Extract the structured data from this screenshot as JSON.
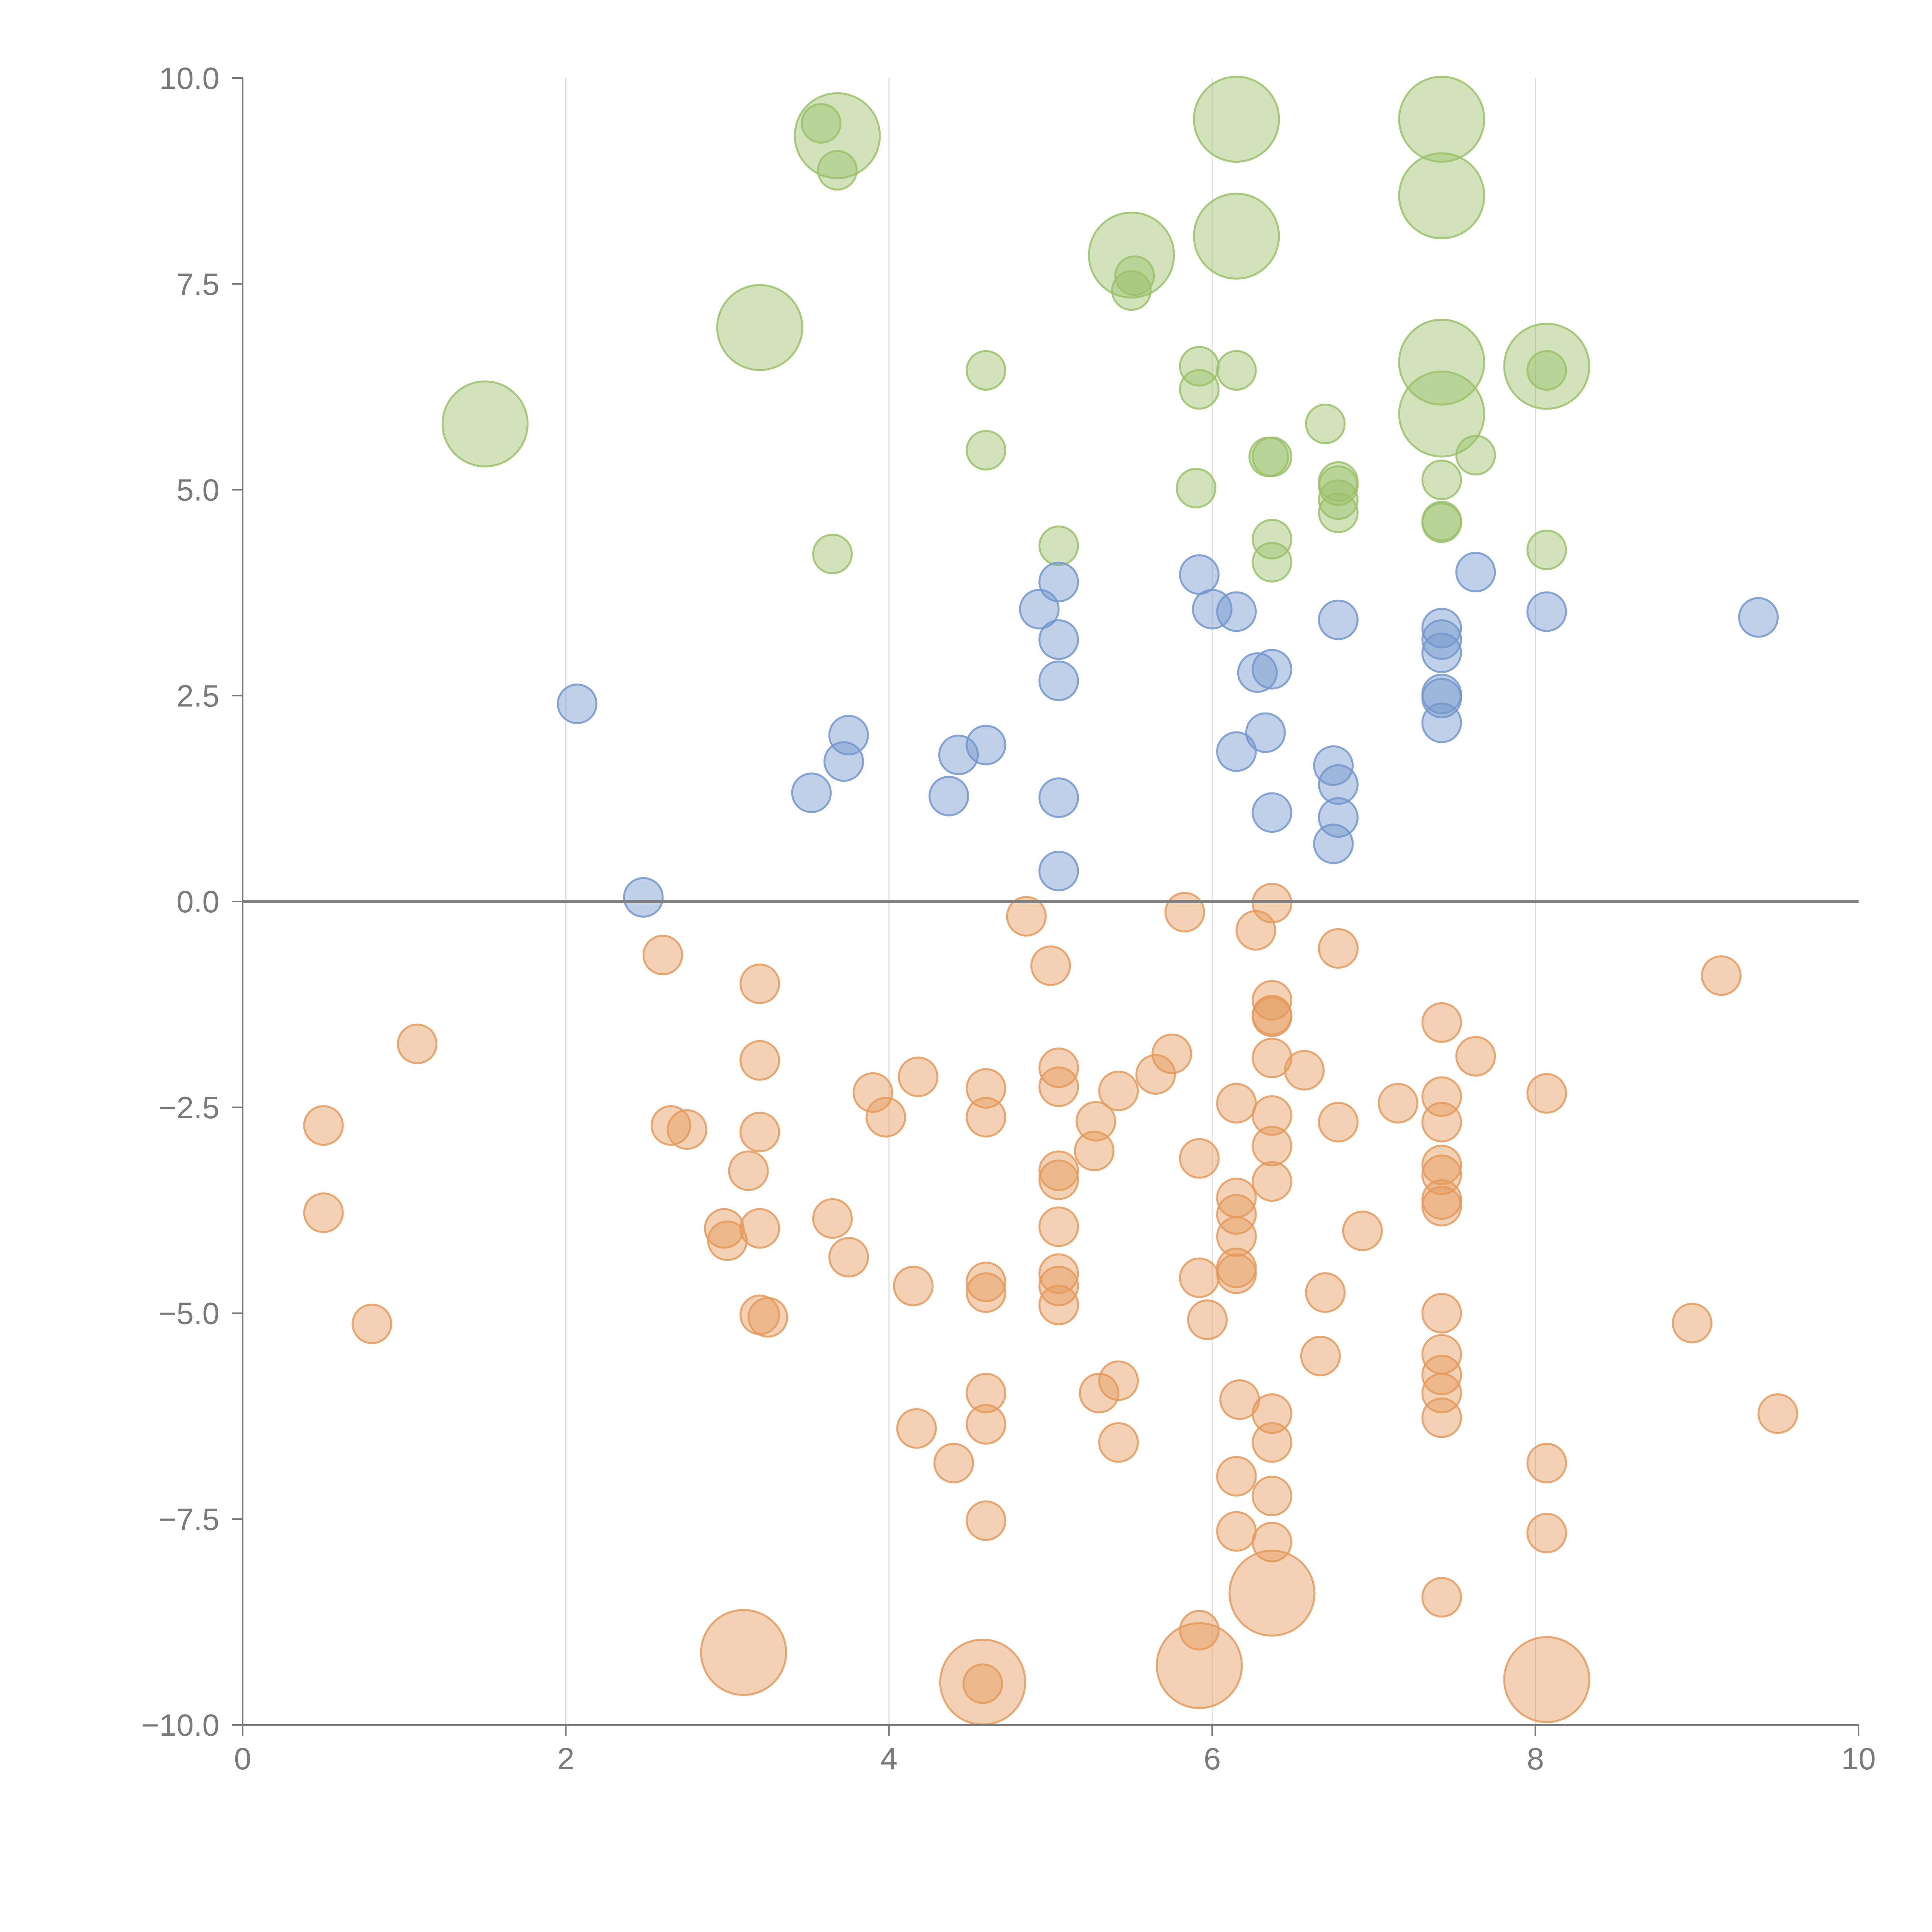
{
  "chart_data": {
    "type": "scatter",
    "title": "",
    "xlabel": "",
    "ylabel": "",
    "xlim": [
      0,
      10
    ],
    "ylim": [
      -10,
      10
    ],
    "x_ticks": [
      {
        "value": 0,
        "label": "0"
      },
      {
        "value": 2,
        "label": "2"
      },
      {
        "value": 4,
        "label": "4"
      },
      {
        "value": 6,
        "label": "6"
      },
      {
        "value": 8,
        "label": "8"
      },
      {
        "value": 10,
        "label": "10"
      }
    ],
    "y_ticks": [
      {
        "value": 10,
        "label": "10.0"
      },
      {
        "value": 7.5,
        "label": "7.5"
      },
      {
        "value": 5,
        "label": "5.0"
      },
      {
        "value": 2.5,
        "label": "2.5"
      },
      {
        "value": 0,
        "label": "0.0"
      },
      {
        "value": -2.5,
        "label": "−2.5"
      },
      {
        "value": -5,
        "label": "−5.0"
      },
      {
        "value": -7.5,
        "label": "−7.5"
      },
      {
        "value": -10,
        "label": "−10.0"
      }
    ],
    "vertical_gridlines_at": [
      2,
      4,
      6,
      8
    ],
    "zero_line": 0,
    "colors": {
      "green": "#9bc16a",
      "blue": "#7396cc",
      "orange": "#e59a5c",
      "axis": "#7a7a7a",
      "grid": "#dddddd",
      "zero_line": "#808080"
    },
    "series": [
      {
        "name": "green",
        "points": [
          [
            3.58,
            9.45,
            "s"
          ],
          [
            3.68,
            9.3,
            "l"
          ],
          [
            3.68,
            8.88,
            "s"
          ],
          [
            6.15,
            9.5,
            "l"
          ],
          [
            7.42,
            9.5,
            "l"
          ],
          [
            7.42,
            8.57,
            "l"
          ],
          [
            6.15,
            8.08,
            "l"
          ],
          [
            5.5,
            7.85,
            "l"
          ],
          [
            5.52,
            7.6,
            "s"
          ],
          [
            5.5,
            7.42,
            "s"
          ],
          [
            3.2,
            6.97,
            "l"
          ],
          [
            7.42,
            6.55,
            "l"
          ],
          [
            8.07,
            6.5,
            "l"
          ],
          [
            8.07,
            6.45,
            "s"
          ],
          [
            4.6,
            6.45,
            "s"
          ],
          [
            5.92,
            6.5,
            "s"
          ],
          [
            6.15,
            6.45,
            "s"
          ],
          [
            5.92,
            6.22,
            "s"
          ],
          [
            7.42,
            5.92,
            "l"
          ],
          [
            1.5,
            5.8,
            "l"
          ],
          [
            6.7,
            5.8,
            "s"
          ],
          [
            4.6,
            5.48,
            "s"
          ],
          [
            6.35,
            5.4,
            "s"
          ],
          [
            6.37,
            5.4,
            "s"
          ],
          [
            7.63,
            5.42,
            "s"
          ],
          [
            6.78,
            5.05,
            "s"
          ],
          [
            6.78,
            5.1,
            "s"
          ],
          [
            7.42,
            5.12,
            "s"
          ],
          [
            5.9,
            5.02,
            "s"
          ],
          [
            6.78,
            4.88,
            "s"
          ],
          [
            6.78,
            4.72,
            "s"
          ],
          [
            7.42,
            4.6,
            "s"
          ],
          [
            7.42,
            4.62,
            "s"
          ],
          [
            6.37,
            4.4,
            "s"
          ],
          [
            5.05,
            4.32,
            "s"
          ],
          [
            8.07,
            4.27,
            "s"
          ],
          [
            3.65,
            4.22,
            "s"
          ],
          [
            6.37,
            4.12,
            "s"
          ]
        ]
      },
      {
        "name": "blue",
        "points": [
          [
            5.05,
            3.88,
            "s"
          ],
          [
            5.92,
            3.97,
            "s"
          ],
          [
            7.63,
            4.0,
            "s"
          ],
          [
            4.93,
            3.55,
            "s"
          ],
          [
            6.0,
            3.55,
            "s"
          ],
          [
            6.15,
            3.52,
            "s"
          ],
          [
            8.07,
            3.52,
            "s"
          ],
          [
            9.38,
            3.45,
            "s"
          ],
          [
            6.78,
            3.42,
            "s"
          ],
          [
            7.42,
            3.32,
            "s"
          ],
          [
            5.05,
            3.18,
            "s"
          ],
          [
            7.42,
            3.18,
            "s"
          ],
          [
            7.42,
            3.02,
            "s"
          ],
          [
            6.37,
            2.82,
            "s"
          ],
          [
            6.28,
            2.78,
            "s"
          ],
          [
            5.05,
            2.68,
            "s"
          ],
          [
            7.42,
            2.52,
            "s"
          ],
          [
            7.42,
            2.47,
            "s"
          ],
          [
            2.07,
            2.4,
            "s"
          ],
          [
            7.42,
            2.17,
            "s"
          ],
          [
            6.33,
            2.05,
            "s"
          ],
          [
            3.75,
            2.02,
            "s"
          ],
          [
            4.6,
            1.9,
            "s"
          ],
          [
            6.15,
            1.82,
            "s"
          ],
          [
            4.43,
            1.78,
            "s"
          ],
          [
            3.72,
            1.7,
            "s"
          ],
          [
            6.75,
            1.65,
            "s"
          ],
          [
            6.78,
            1.42,
            "s"
          ],
          [
            3.52,
            1.32,
            "s"
          ],
          [
            4.37,
            1.28,
            "s"
          ],
          [
            5.05,
            1.26,
            "s"
          ],
          [
            6.37,
            1.08,
            "s"
          ],
          [
            6.78,
            1.02,
            "s"
          ],
          [
            6.75,
            0.7,
            "s"
          ],
          [
            5.05,
            0.37,
            "s"
          ],
          [
            2.48,
            0.05,
            "s"
          ]
        ]
      },
      {
        "name": "orange",
        "points": [
          [
            6.37,
            -0.02,
            "s"
          ],
          [
            5.83,
            -0.13,
            "s"
          ],
          [
            4.85,
            -0.18,
            "s"
          ],
          [
            6.27,
            -0.35,
            "s"
          ],
          [
            6.78,
            -0.57,
            "s"
          ],
          [
            2.6,
            -0.65,
            "s"
          ],
          [
            5.0,
            -0.78,
            "s"
          ],
          [
            9.15,
            -0.9,
            "s"
          ],
          [
            3.2,
            -1.0,
            "s"
          ],
          [
            6.37,
            -1.2,
            "s"
          ],
          [
            6.37,
            -1.38,
            "s"
          ],
          [
            6.37,
            -1.4,
            "s"
          ],
          [
            7.42,
            -1.47,
            "s"
          ],
          [
            1.08,
            -1.73,
            "s"
          ],
          [
            5.75,
            -1.85,
            "s"
          ],
          [
            7.63,
            -1.88,
            "s"
          ],
          [
            6.37,
            -1.9,
            "s"
          ],
          [
            3.2,
            -1.93,
            "s"
          ],
          [
            5.05,
            -2.02,
            "s"
          ],
          [
            6.57,
            -2.05,
            "s"
          ],
          [
            5.65,
            -2.1,
            "s"
          ],
          [
            4.18,
            -2.13,
            "s"
          ],
          [
            5.05,
            -2.25,
            "s"
          ],
          [
            4.6,
            -2.27,
            "s"
          ],
          [
            5.42,
            -2.3,
            "s"
          ],
          [
            3.9,
            -2.32,
            "s"
          ],
          [
            8.07,
            -2.33,
            "s"
          ],
          [
            7.42,
            -2.37,
            "s"
          ],
          [
            6.15,
            -2.45,
            "s"
          ],
          [
            7.15,
            -2.45,
            "s"
          ],
          [
            6.37,
            -2.6,
            "s"
          ],
          [
            4.6,
            -2.62,
            "s"
          ],
          [
            3.98,
            -2.62,
            "s"
          ],
          [
            5.28,
            -2.67,
            "s"
          ],
          [
            6.78,
            -2.68,
            "s"
          ],
          [
            7.42,
            -2.68,
            "s"
          ],
          [
            0.5,
            -2.72,
            "s"
          ],
          [
            2.65,
            -2.72,
            "s"
          ],
          [
            2.75,
            -2.77,
            "s"
          ],
          [
            3.2,
            -2.8,
            "s"
          ],
          [
            6.37,
            -2.97,
            "s"
          ],
          [
            5.27,
            -3.03,
            "s"
          ],
          [
            5.92,
            -3.12,
            "s"
          ],
          [
            7.42,
            -3.2,
            "s"
          ],
          [
            5.05,
            -3.27,
            "s"
          ],
          [
            3.13,
            -3.27,
            "s"
          ],
          [
            7.42,
            -3.32,
            "s"
          ],
          [
            5.05,
            -3.38,
            "s"
          ],
          [
            6.37,
            -3.4,
            "s"
          ],
          [
            6.15,
            -3.6,
            "s"
          ],
          [
            7.42,
            -3.62,
            "s"
          ],
          [
            7.42,
            -3.7,
            "s"
          ],
          [
            0.5,
            -3.78,
            "s"
          ],
          [
            6.15,
            -3.8,
            "s"
          ],
          [
            3.65,
            -3.85,
            "s"
          ],
          [
            5.05,
            -3.95,
            "s"
          ],
          [
            2.98,
            -3.97,
            "s"
          ],
          [
            3.2,
            -3.97,
            "s"
          ],
          [
            6.93,
            -4.0,
            "s"
          ],
          [
            6.15,
            -4.07,
            "s"
          ],
          [
            3.0,
            -4.12,
            "s"
          ],
          [
            3.75,
            -4.32,
            "s"
          ],
          [
            6.15,
            -4.45,
            "s"
          ],
          [
            6.15,
            -4.52,
            "s"
          ],
          [
            5.05,
            -4.52,
            "s"
          ],
          [
            5.92,
            -4.57,
            "s"
          ],
          [
            4.6,
            -4.62,
            "s"
          ],
          [
            4.15,
            -4.67,
            "s"
          ],
          [
            5.05,
            -4.67,
            "s"
          ],
          [
            4.6,
            -4.75,
            "s"
          ],
          [
            6.7,
            -4.75,
            "s"
          ],
          [
            5.05,
            -4.9,
            "s"
          ],
          [
            7.42,
            -5.0,
            "s"
          ],
          [
            3.2,
            -5.02,
            "s"
          ],
          [
            3.25,
            -5.05,
            "s"
          ],
          [
            5.97,
            -5.08,
            "s"
          ],
          [
            8.97,
            -5.12,
            "s"
          ],
          [
            0.8,
            -5.13,
            "s"
          ],
          [
            6.67,
            -5.52,
            "s"
          ],
          [
            7.42,
            -5.5,
            "s"
          ],
          [
            7.42,
            -5.75,
            "s"
          ],
          [
            5.42,
            -5.82,
            "s"
          ],
          [
            7.42,
            -5.97,
            "s"
          ],
          [
            5.3,
            -5.97,
            "s"
          ],
          [
            4.6,
            -5.97,
            "s"
          ],
          [
            6.17,
            -6.05,
            "s"
          ],
          [
            7.42,
            -6.27,
            "s"
          ],
          [
            6.37,
            -6.22,
            "s"
          ],
          [
            9.5,
            -6.22,
            "s"
          ],
          [
            4.6,
            -6.35,
            "s"
          ],
          [
            4.17,
            -6.4,
            "s"
          ],
          [
            6.37,
            -6.57,
            "s"
          ],
          [
            5.42,
            -6.57,
            "s"
          ],
          [
            4.4,
            -6.82,
            "s"
          ],
          [
            8.07,
            -6.82,
            "s"
          ],
          [
            6.15,
            -6.98,
            "s"
          ],
          [
            6.37,
            -7.22,
            "s"
          ],
          [
            4.6,
            -7.52,
            "s"
          ],
          [
            8.07,
            -7.67,
            "s"
          ],
          [
            6.15,
            -7.65,
            "s"
          ],
          [
            6.37,
            -7.78,
            "s"
          ],
          [
            7.42,
            -8.45,
            "s"
          ],
          [
            6.37,
            -8.4,
            "l"
          ],
          [
            5.92,
            -8.85,
            "s"
          ],
          [
            3.1,
            -9.12,
            "l"
          ],
          [
            5.92,
            -9.28,
            "l"
          ],
          [
            4.58,
            -9.48,
            "l"
          ],
          [
            4.58,
            -9.5,
            "s"
          ],
          [
            8.07,
            -9.45,
            "l"
          ]
        ]
      }
    ]
  }
}
